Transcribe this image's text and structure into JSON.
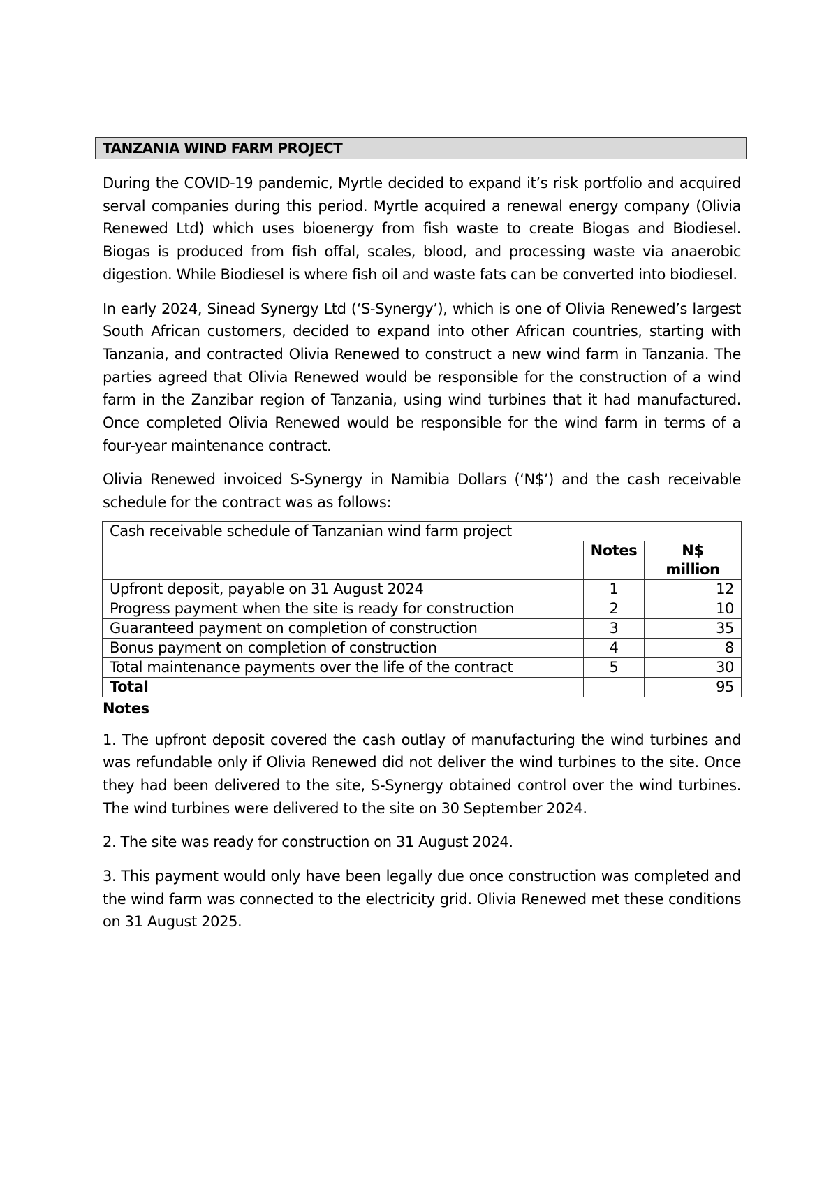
{
  "title": "TANZANIA WIND FARM PROJECT",
  "paragraphs": [
    "During the COVID-19 pandemic, Myrtle decided to expand it’s risk portfolio and acquired serval companies during this period. Myrtle acquired a renewal energy company (Olivia Renewed Ltd) which uses bioenergy from fish waste to create Biogas and Biodiesel. Biogas is produced from fish offal, scales, blood, and processing waste via anaerobic digestion. While Biodiesel is where fish oil and waste fats can be converted into biodiesel.",
    "In early 2024, Sinead Synergy Ltd (‘S-Synergy’), which is one of Olivia Renewed’s largest South African customers, decided to expand into other African countries, starting with Tanzania, and contracted Olivia Renewed to construct a new wind farm in Tanzania. The parties agreed that Olivia Renewed would be responsible for the construction of a wind farm in the Zanzibar region of Tanzania, using wind turbines that it had manufactured. Once completed Olivia Renewed would be responsible for the wind farm in terms of a four-year maintenance contract.",
    "Olivia Renewed invoiced S-Synergy in Namibia Dollars (‘N$’) and the cash receivable schedule for the contract was as follows:"
  ],
  "table": {
    "caption": "Cash receivable schedule of Tanzanian wind farm project",
    "headers": {
      "notes": "Notes",
      "amount_line1": "N$",
      "amount_line2": "million"
    },
    "rows": [
      {
        "desc": "Upfront deposit, payable on 31 August 2024",
        "note": "1",
        "amount": "12"
      },
      {
        "desc": "Progress payment when the site is ready for construction",
        "note": "2",
        "amount": "10"
      },
      {
        "desc": "Guaranteed payment on completion of construction",
        "note": "3",
        "amount": "35"
      },
      {
        "desc": "Bonus payment on completion of construction",
        "note": "4",
        "amount": "8"
      },
      {
        "desc": "Total maintenance payments over the life of the contract",
        "note": "5",
        "amount": "30"
      }
    ],
    "total": {
      "label": "Total",
      "amount": "95"
    }
  },
  "notes": {
    "heading": "Notes",
    "items": [
      "1. The upfront deposit covered the cash outlay of manufacturing the wind turbines and was refundable only if Olivia Renewed did not deliver the wind turbines to the site. Once they had been delivered to the site, S-Synergy obtained control over the wind turbines. The wind turbines were delivered to the site on 30 September 2024.",
      "2. The site was ready for construction on 31 August 2024.",
      "3. This payment would only have been legally due once construction was completed and the wind farm was connected to the electricity grid. Olivia Renewed met these conditions on 31 August 2025."
    ]
  }
}
